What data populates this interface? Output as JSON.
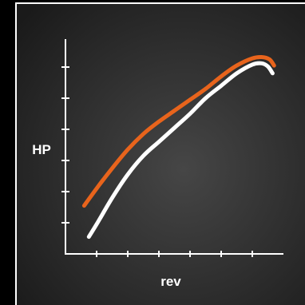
{
  "chart_data": {
    "type": "line",
    "xlabel": "rev",
    "ylabel": "HP",
    "xlim": [
      0,
      7
    ],
    "ylim": [
      0,
      7
    ],
    "grid": false,
    "legend": "none",
    "x_ticks": [
      1,
      2,
      3,
      4,
      5,
      6
    ],
    "y_ticks": [
      1,
      2,
      3,
      4,
      5,
      6
    ],
    "series": [
      {
        "color": "#e8641c",
        "x": [
          0.6,
          1.0,
          1.5,
          2.0,
          2.5,
          3.0,
          3.5,
          4.0,
          4.5,
          5.0,
          5.5,
          6.0,
          6.3,
          6.55,
          6.7
        ],
        "y": [
          1.55,
          2.1,
          2.75,
          3.35,
          3.85,
          4.25,
          4.6,
          4.95,
          5.3,
          5.7,
          6.05,
          6.28,
          6.32,
          6.25,
          6.05
        ]
      },
      {
        "color": "#ffffff",
        "x": [
          0.75,
          1.0,
          1.5,
          2.0,
          2.5,
          3.0,
          3.5,
          4.0,
          4.5,
          5.0,
          5.5,
          6.0,
          6.3,
          6.5,
          6.65
        ],
        "y": [
          0.55,
          0.95,
          1.8,
          2.55,
          3.15,
          3.6,
          4.05,
          4.5,
          5.0,
          5.4,
          5.8,
          6.08,
          6.12,
          6.02,
          5.8
        ]
      }
    ]
  },
  "colors": {
    "background_center": "#464646",
    "background_edge": "#1a1a1a",
    "frame": "#ffffff",
    "axis": "#ffffff"
  }
}
